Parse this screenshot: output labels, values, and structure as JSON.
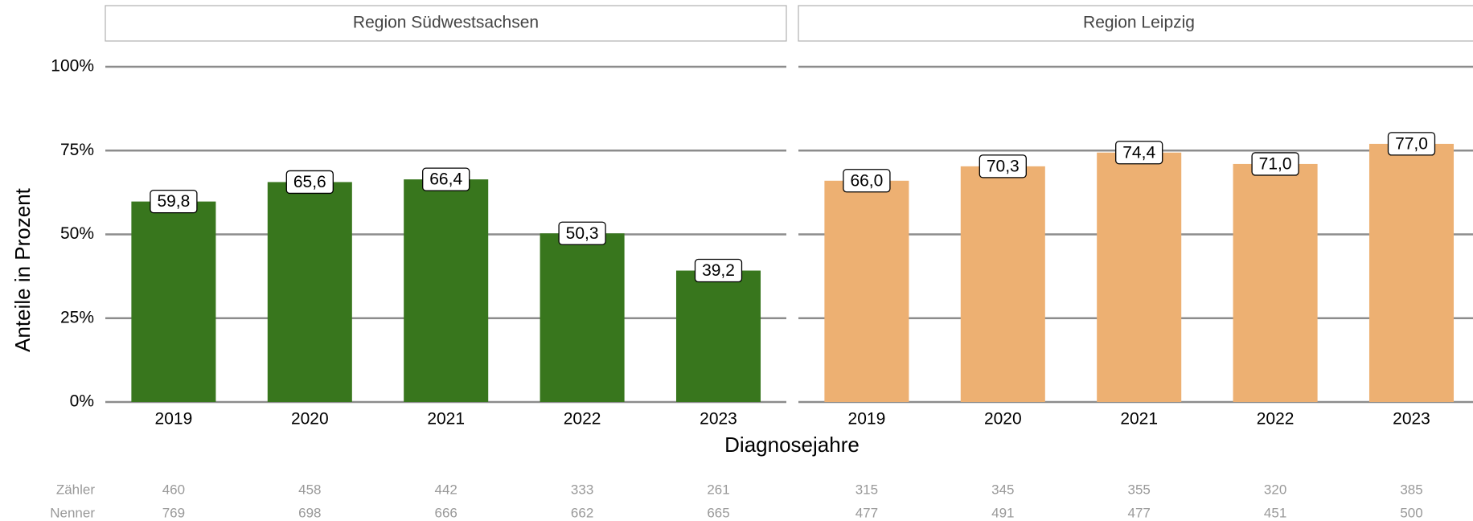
{
  "y_label": "Anteile in Prozent",
  "x_label": "Diagnosejahre",
  "row_labels": [
    "Zähler",
    "Nenner"
  ],
  "chart_data": [
    {
      "type": "bar",
      "title": "Region Südwestsachsen",
      "color": "#38761d",
      "categories": [
        "2019",
        "2020",
        "2021",
        "2022",
        "2023"
      ],
      "values": [
        59.8,
        65.6,
        66.4,
        50.3,
        39.2
      ],
      "value_labels": [
        "59,8",
        "65,6",
        "66,4",
        "50,3",
        "39,2"
      ],
      "numerators": [
        460,
        458,
        442,
        333,
        261
      ],
      "denominators": [
        769,
        698,
        666,
        662,
        665
      ],
      "ylim": [
        0,
        100
      ],
      "yticks": [
        {
          "value": 0,
          "label": "0%"
        },
        {
          "value": 25,
          "label": "25%"
        },
        {
          "value": 50,
          "label": "50%"
        },
        {
          "value": 75,
          "label": "75%"
        },
        {
          "value": 100,
          "label": "100%"
        }
      ],
      "grid": true
    },
    {
      "type": "bar",
      "title": "Region Leipzig",
      "color": "#edb072",
      "categories": [
        "2019",
        "2020",
        "2021",
        "2022",
        "2023"
      ],
      "values": [
        66.0,
        70.3,
        74.4,
        71.0,
        77.0
      ],
      "value_labels": [
        "66,0",
        "70,3",
        "74,4",
        "71,0",
        "77,0"
      ],
      "numerators": [
        315,
        345,
        355,
        320,
        385
      ],
      "denominators": [
        477,
        491,
        477,
        451,
        500
      ],
      "ylim": [
        0,
        100
      ],
      "yticks": [
        {
          "value": 0,
          "label": "0%"
        },
        {
          "value": 25,
          "label": "25%"
        },
        {
          "value": 50,
          "label": "50%"
        },
        {
          "value": 75,
          "label": "75%"
        },
        {
          "value": 100,
          "label": "100%"
        }
      ],
      "grid": true
    }
  ]
}
